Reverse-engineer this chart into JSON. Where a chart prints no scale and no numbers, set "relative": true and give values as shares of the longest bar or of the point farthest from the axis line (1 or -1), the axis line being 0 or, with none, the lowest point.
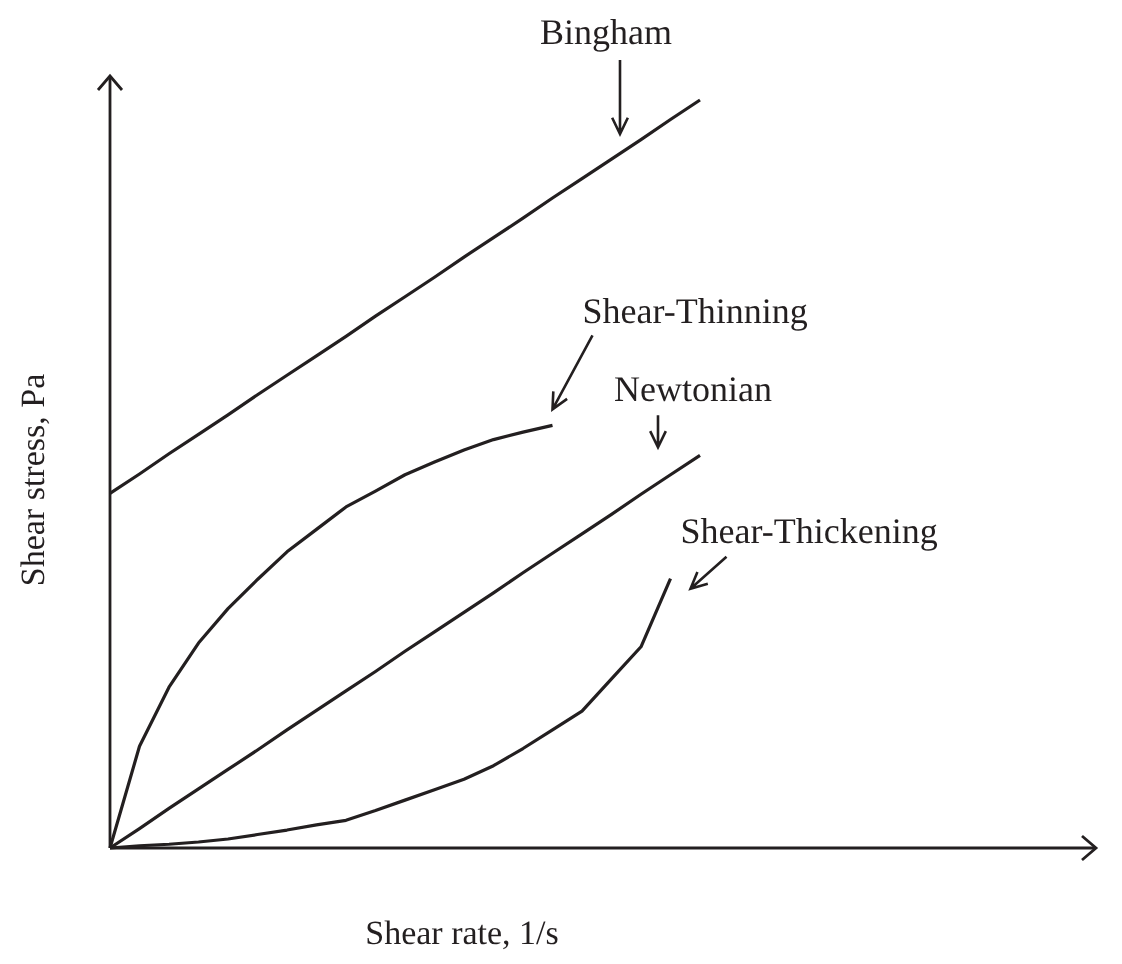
{
  "chart_data": {
    "type": "line",
    "relative": true,
    "xlabel": "Shear rate, 1/s",
    "ylabel": "Shear stress, Pa",
    "categories": [
      null,
      null,
      null,
      null,
      null,
      null,
      null,
      null,
      null,
      null,
      null,
      null,
      null,
      null,
      null,
      null,
      null,
      null,
      null,
      null,
      null
    ],
    "series": [
      {
        "name": "Bingham",
        "color": "#231f20",
        "values": [
          0.474,
          0.5,
          0.527,
          0.553,
          0.579,
          0.606,
          0.632,
          0.658,
          0.684,
          0.711,
          0.737,
          0.763,
          0.79,
          0.816,
          0.842,
          0.869,
          0.895,
          0.921,
          0.947,
          0.974,
          1.0
        ]
      },
      {
        "name": "Shear-Thinning",
        "color": "#231f20",
        "values": [
          0,
          0.136,
          0.215,
          0.274,
          0.32,
          0.359,
          0.396,
          0.426,
          0.456,
          0.477,
          0.499,
          0.516,
          0.532,
          0.546,
          0.556,
          0.565,
          null,
          null,
          null,
          null,
          null
        ]
      },
      {
        "name": "Newtonian",
        "color": "#231f20",
        "values": [
          0,
          0.026,
          0.053,
          0.079,
          0.105,
          0.131,
          0.158,
          0.184,
          0.21,
          0.236,
          0.263,
          0.289,
          0.315,
          0.341,
          0.368,
          0.394,
          0.42,
          0.446,
          0.473,
          0.499,
          0.525
        ]
      },
      {
        "name": "Shear-Thickening",
        "color": "#231f20",
        "values": [
          0,
          0.003,
          0.005,
          0.008,
          0.012,
          0.018,
          0.024,
          0.031,
          0.037,
          0.05,
          0.064,
          0.078,
          0.092,
          0.11,
          0.133,
          0.158,
          0.183,
          0.226,
          0.269,
          0.36,
          null
        ]
      }
    ]
  }
}
